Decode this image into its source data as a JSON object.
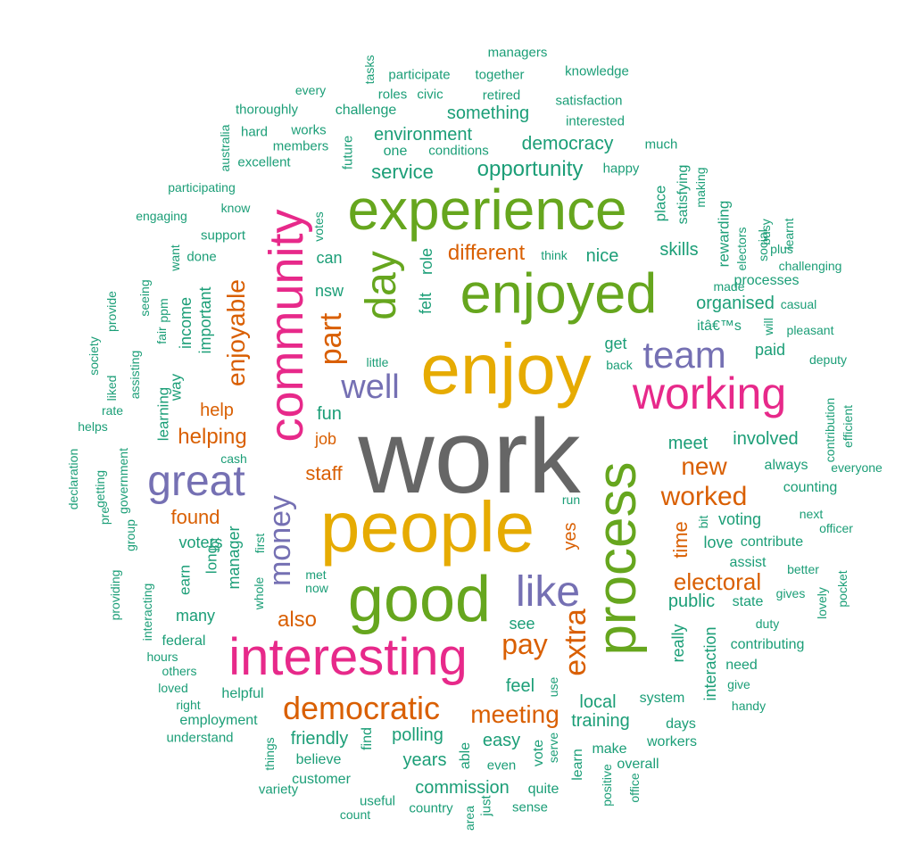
{
  "palette": {
    "gray": "#666666",
    "gold": "#e6ab02",
    "green": "#66a61e",
    "magenta": "#e7298a",
    "purple": "#7570b3",
    "orange": "#d95f02",
    "teal": "#1b9e77"
  },
  "words": [
    {
      "text": "work",
      "color": "gray"
    },
    {
      "text": "people",
      "color": "gold"
    },
    {
      "text": "enjoy",
      "color": "gold"
    },
    {
      "text": "good",
      "color": "green"
    },
    {
      "text": "process",
      "color": "green"
    },
    {
      "text": "enjoyed",
      "color": "green"
    },
    {
      "text": "experience",
      "color": "green"
    },
    {
      "text": "interesting",
      "color": "magenta"
    },
    {
      "text": "community",
      "color": "magenta"
    },
    {
      "text": "working",
      "color": "magenta"
    },
    {
      "text": "day",
      "color": "green"
    },
    {
      "text": "great",
      "color": "purple"
    },
    {
      "text": "like",
      "color": "purple"
    },
    {
      "text": "team",
      "color": "purple"
    },
    {
      "text": "money",
      "color": "purple"
    },
    {
      "text": "well",
      "color": "purple"
    },
    {
      "text": "democratic",
      "color": "orange"
    },
    {
      "text": "part",
      "color": "orange"
    },
    {
      "text": "pay",
      "color": "orange"
    },
    {
      "text": "extra",
      "color": "orange"
    },
    {
      "text": "meeting",
      "color": "orange"
    },
    {
      "text": "enjoyable",
      "color": "orange"
    },
    {
      "text": "worked",
      "color": "orange"
    },
    {
      "text": "new",
      "color": "orange"
    },
    {
      "text": "also",
      "color": "orange"
    },
    {
      "text": "helping",
      "color": "orange"
    },
    {
      "text": "different",
      "color": "orange"
    },
    {
      "text": "electoral",
      "color": "orange"
    },
    {
      "text": "found",
      "color": "orange"
    },
    {
      "text": "help",
      "color": "orange"
    },
    {
      "text": "staff",
      "color": "orange"
    },
    {
      "text": "yes",
      "color": "orange"
    },
    {
      "text": "time",
      "color": "orange"
    },
    {
      "text": "job",
      "color": "orange"
    },
    {
      "text": "opportunity",
      "color": "teal"
    },
    {
      "text": "democracy",
      "color": "teal"
    },
    {
      "text": "service",
      "color": "teal"
    },
    {
      "text": "environment",
      "color": "teal"
    },
    {
      "text": "something",
      "color": "teal"
    },
    {
      "text": "nice",
      "color": "teal"
    },
    {
      "text": "skills",
      "color": "teal"
    },
    {
      "text": "organised",
      "color": "teal"
    },
    {
      "text": "fun",
      "color": "teal"
    },
    {
      "text": "meet",
      "color": "teal"
    },
    {
      "text": "involved",
      "color": "teal"
    },
    {
      "text": "public",
      "color": "teal"
    },
    {
      "text": "local",
      "color": "teal"
    },
    {
      "text": "polling",
      "color": "teal"
    },
    {
      "text": "friendly",
      "color": "teal"
    },
    {
      "text": "training",
      "color": "teal"
    },
    {
      "text": "commission",
      "color": "teal"
    },
    {
      "text": "easy",
      "color": "teal"
    },
    {
      "text": "years",
      "color": "teal"
    },
    {
      "text": "feel",
      "color": "teal"
    },
    {
      "text": "manager",
      "color": "teal"
    },
    {
      "text": "important",
      "color": "teal"
    },
    {
      "text": "income",
      "color": "teal"
    },
    {
      "text": "voting",
      "color": "teal"
    },
    {
      "text": "love",
      "color": "teal"
    },
    {
      "text": "voters",
      "color": "teal"
    },
    {
      "text": "paid",
      "color": "teal"
    },
    {
      "text": "get",
      "color": "teal"
    },
    {
      "text": "can",
      "color": "teal"
    },
    {
      "text": "nsw",
      "color": "teal"
    },
    {
      "text": "role",
      "color": "teal"
    },
    {
      "text": "felt",
      "color": "teal"
    },
    {
      "text": "really",
      "color": "teal"
    },
    {
      "text": "interaction",
      "color": "teal"
    },
    {
      "text": "see",
      "color": "teal"
    },
    {
      "text": "many",
      "color": "teal"
    },
    {
      "text": "long",
      "color": "teal"
    },
    {
      "text": "earn",
      "color": "teal"
    },
    {
      "text": "way",
      "color": "teal"
    },
    {
      "text": "learning",
      "color": "teal"
    },
    {
      "text": "place",
      "color": "teal"
    },
    {
      "text": "rewarding",
      "color": "teal"
    },
    {
      "text": "satisfying",
      "color": "teal"
    },
    {
      "text": "processes",
      "color": "teal"
    },
    {
      "text": "itâ€™s",
      "color": "teal"
    },
    {
      "text": "always",
      "color": "teal"
    },
    {
      "text": "counting",
      "color": "teal"
    },
    {
      "text": "contribute",
      "color": "teal"
    },
    {
      "text": "assist",
      "color": "teal"
    },
    {
      "text": "state",
      "color": "teal"
    },
    {
      "text": "contributing",
      "color": "teal"
    },
    {
      "text": "need",
      "color": "teal"
    },
    {
      "text": "system",
      "color": "teal"
    },
    {
      "text": "days",
      "color": "teal"
    },
    {
      "text": "workers",
      "color": "teal"
    },
    {
      "text": "overall",
      "color": "teal"
    },
    {
      "text": "make",
      "color": "teal"
    },
    {
      "text": "vote",
      "color": "teal"
    },
    {
      "text": "able",
      "color": "teal"
    },
    {
      "text": "believe",
      "color": "teal"
    },
    {
      "text": "customer",
      "color": "teal"
    },
    {
      "text": "helpful",
      "color": "teal"
    },
    {
      "text": "employment",
      "color": "teal"
    },
    {
      "text": "federal",
      "color": "teal"
    },
    {
      "text": "find",
      "color": "teal"
    },
    {
      "text": "quite",
      "color": "teal"
    },
    {
      "text": "learn",
      "color": "teal"
    },
    {
      "text": "even",
      "color": "teal"
    },
    {
      "text": "sense",
      "color": "teal"
    },
    {
      "text": "country",
      "color": "teal"
    },
    {
      "text": "just",
      "color": "teal"
    },
    {
      "text": "useful",
      "color": "teal"
    },
    {
      "text": "count",
      "color": "teal"
    },
    {
      "text": "variety",
      "color": "teal"
    },
    {
      "text": "things",
      "color": "teal"
    },
    {
      "text": "understand",
      "color": "teal"
    },
    {
      "text": "challenge",
      "color": "teal"
    },
    {
      "text": "thoroughly",
      "color": "teal"
    },
    {
      "text": "hard",
      "color": "teal"
    },
    {
      "text": "works",
      "color": "teal"
    },
    {
      "text": "members",
      "color": "teal"
    },
    {
      "text": "excellent",
      "color": "teal"
    },
    {
      "text": "one",
      "color": "teal"
    },
    {
      "text": "conditions",
      "color": "teal"
    },
    {
      "text": "future",
      "color": "teal"
    },
    {
      "text": "participate",
      "color": "teal"
    },
    {
      "text": "roles",
      "color": "teal"
    },
    {
      "text": "civic",
      "color": "teal"
    },
    {
      "text": "together",
      "color": "teal"
    },
    {
      "text": "retired",
      "color": "teal"
    },
    {
      "text": "managers",
      "color": "teal"
    },
    {
      "text": "knowledge",
      "color": "teal"
    },
    {
      "text": "satisfaction",
      "color": "teal"
    },
    {
      "text": "interested",
      "color": "teal"
    },
    {
      "text": "much",
      "color": "teal"
    },
    {
      "text": "happy",
      "color": "teal"
    },
    {
      "text": "every",
      "color": "teal"
    },
    {
      "text": "tasks",
      "color": "teal"
    },
    {
      "text": "australia",
      "color": "teal"
    },
    {
      "text": "participating",
      "color": "teal"
    },
    {
      "text": "engaging",
      "color": "teal"
    },
    {
      "text": "know",
      "color": "teal"
    },
    {
      "text": "votes",
      "color": "teal"
    },
    {
      "text": "support",
      "color": "teal"
    },
    {
      "text": "done",
      "color": "teal"
    },
    {
      "text": "want",
      "color": "teal"
    },
    {
      "text": "ppm",
      "color": "teal"
    },
    {
      "text": "fair",
      "color": "teal"
    },
    {
      "text": "seeing",
      "color": "teal"
    },
    {
      "text": "provide",
      "color": "teal"
    },
    {
      "text": "assisting",
      "color": "teal"
    },
    {
      "text": "society",
      "color": "teal"
    },
    {
      "text": "liked",
      "color": "teal"
    },
    {
      "text": "rate",
      "color": "teal"
    },
    {
      "text": "helps",
      "color": "teal"
    },
    {
      "text": "government",
      "color": "teal"
    },
    {
      "text": "cash",
      "color": "teal"
    },
    {
      "text": "getting",
      "color": "teal"
    },
    {
      "text": "declaration",
      "color": "teal"
    },
    {
      "text": "pre",
      "color": "teal"
    },
    {
      "text": "group",
      "color": "teal"
    },
    {
      "text": "providing",
      "color": "teal"
    },
    {
      "text": "interacting",
      "color": "teal"
    },
    {
      "text": "hours",
      "color": "teal"
    },
    {
      "text": "others",
      "color": "teal"
    },
    {
      "text": "loved",
      "color": "teal"
    },
    {
      "text": "right",
      "color": "teal"
    },
    {
      "text": "whole",
      "color": "teal"
    },
    {
      "text": "first",
      "color": "teal"
    },
    {
      "text": "lot",
      "color": "teal"
    },
    {
      "text": "met",
      "color": "teal"
    },
    {
      "text": "now",
      "color": "teal"
    },
    {
      "text": "run",
      "color": "teal"
    },
    {
      "text": "use",
      "color": "teal"
    },
    {
      "text": "serve",
      "color": "teal"
    },
    {
      "text": "positive",
      "color": "teal"
    },
    {
      "text": "office",
      "color": "teal"
    },
    {
      "text": "area",
      "color": "teal"
    },
    {
      "text": "little",
      "color": "teal"
    },
    {
      "text": "back",
      "color": "teal"
    },
    {
      "text": "think",
      "color": "teal"
    },
    {
      "text": "made",
      "color": "teal"
    },
    {
      "text": "will",
      "color": "teal"
    },
    {
      "text": "casual",
      "color": "teal"
    },
    {
      "text": "pleasant",
      "color": "teal"
    },
    {
      "text": "deputy",
      "color": "teal"
    },
    {
      "text": "challenging",
      "color": "teal"
    },
    {
      "text": "plus",
      "color": "teal"
    },
    {
      "text": "social",
      "color": "teal"
    },
    {
      "text": "electors",
      "color": "teal"
    },
    {
      "text": "busy",
      "color": "teal"
    },
    {
      "text": "learnt",
      "color": "teal"
    },
    {
      "text": "making",
      "color": "teal"
    },
    {
      "text": "contribution",
      "color": "teal"
    },
    {
      "text": "efficient",
      "color": "teal"
    },
    {
      "text": "everyone",
      "color": "teal"
    },
    {
      "text": "next",
      "color": "teal"
    },
    {
      "text": "officer",
      "color": "teal"
    },
    {
      "text": "bit",
      "color": "teal"
    },
    {
      "text": "better",
      "color": "teal"
    },
    {
      "text": "gives",
      "color": "teal"
    },
    {
      "text": "lovely",
      "color": "teal"
    },
    {
      "text": "pocket",
      "color": "teal"
    },
    {
      "text": "duty",
      "color": "teal"
    },
    {
      "text": "give",
      "color": "teal"
    },
    {
      "text": "handy",
      "color": "teal"
    }
  ]
}
